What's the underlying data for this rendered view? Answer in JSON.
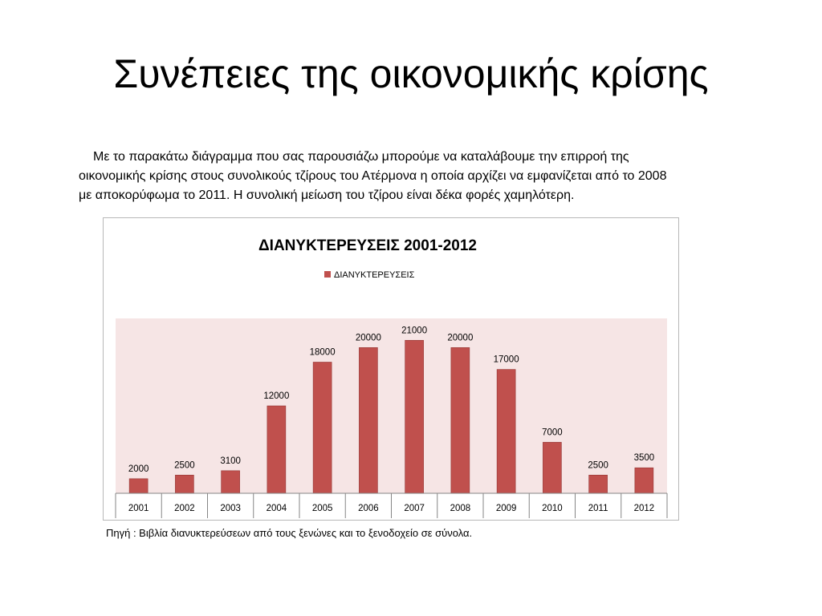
{
  "slide": {
    "title": "Συνέπειες της οικονομικής κρίσης",
    "intro_lines": [
      "Με το παρακάτω διάγραμμα που σας παρουσιάζω μπορούμε να καταλάβουμε την επιρροή της",
      "οικονομικής κρίσης στους συνολικούς τζίρους του Ατέρμονα η οποία αρχίζει να εμφανίζεται από το 2008",
      "με αποκορύφωμα το 2011.  Η συνολική μείωση του τζίρου είναι δέκα φορές χαμηλότερη."
    ],
    "source": "Πηγή : Βιβλία διανυκτερεύσεων από τους ξενώνες και το ξενοδοχείο σε σύνολα."
  },
  "chart_data": {
    "type": "bar",
    "title": "ΔΙΑΝΥΚΤΕΡΕΥΣΕΙΣ 2001-2012",
    "xlabel": "",
    "ylabel": "",
    "categories": [
      "2001",
      "2002",
      "2003",
      "2004",
      "2005",
      "2006",
      "2007",
      "2008",
      "2009",
      "2010",
      "2011",
      "2012"
    ],
    "series": [
      {
        "name": "ΔΙΑΝΥΚΤΕΡΕΥΣΕΙΣ",
        "values": [
          2000,
          2500,
          3100,
          12000,
          18000,
          20000,
          21000,
          20000,
          17000,
          7000,
          2500,
          3500
        ]
      }
    ],
    "data_labels": true,
    "ylim": [
      0,
      24000
    ],
    "grid": false,
    "legend_position": "top",
    "colors": {
      "bar": "#c0504d",
      "bar_edge": "#943634",
      "plot_background": "#f6e5e5",
      "axis": "#868686"
    }
  }
}
